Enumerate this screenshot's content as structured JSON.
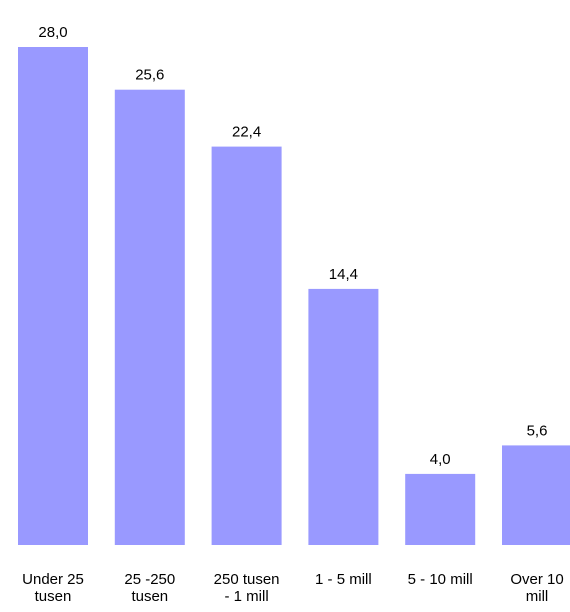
{
  "chart_data": {
    "type": "bar",
    "categories": [
      [
        "Under 25",
        "tusen"
      ],
      [
        "25 -250",
        "tusen"
      ],
      [
        "250 tusen",
        "- 1 mill"
      ],
      [
        "1 - 5 mill"
      ],
      [
        "5 - 10 mill"
      ],
      [
        "Over 10",
        "mill"
      ]
    ],
    "values": [
      28.0,
      25.6,
      22.4,
      14.4,
      4.0,
      5.6
    ],
    "value_labels": [
      "28,0",
      "25,6",
      "22,4",
      "14,4",
      "4,0",
      "5,6"
    ],
    "ylim": [
      0,
      28.0
    ],
    "bar_color": "#9999ff",
    "grid": false,
    "legend": "none"
  }
}
